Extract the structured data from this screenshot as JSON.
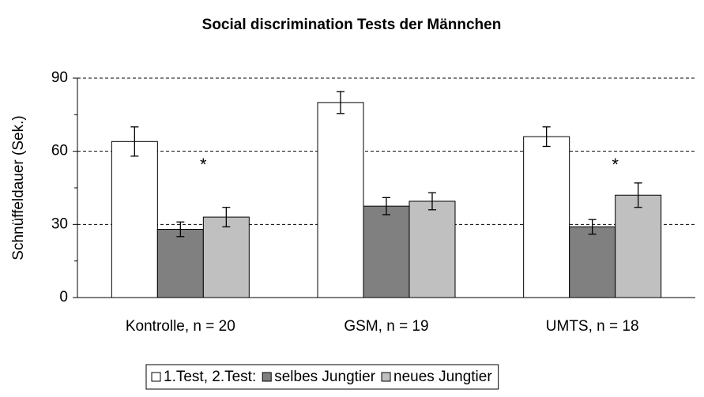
{
  "chart_data": {
    "type": "bar",
    "title": "Social discrimination Tests der Männchen",
    "y_label": "Schnüffeldauer (Sek.)",
    "categories": [
      "Kontrolle, n = 20",
      "GSM, n = 19",
      "UMTS, n = 18"
    ],
    "series": [
      {
        "name": "1.Test, 2.Test:",
        "color": "#ffffff",
        "values": [
          64,
          80,
          66
        ],
        "errors": [
          6,
          4.5,
          4
        ]
      },
      {
        "name": "selbes Jungtier",
        "color": "#808080",
        "values": [
          28,
          37.5,
          29
        ],
        "errors": [
          3,
          3.5,
          3
        ]
      },
      {
        "name": "neues Jungtier",
        "color": "#c0c0c0",
        "values": [
          33,
          39.5,
          42
        ],
        "errors": [
          4,
          3.5,
          5
        ]
      }
    ],
    "annotations": [
      "*",
      null,
      "*"
    ],
    "ylim": [
      0,
      90
    ],
    "yticks": [
      0,
      30,
      60,
      90
    ],
    "grid": true,
    "legend": "bottom"
  }
}
